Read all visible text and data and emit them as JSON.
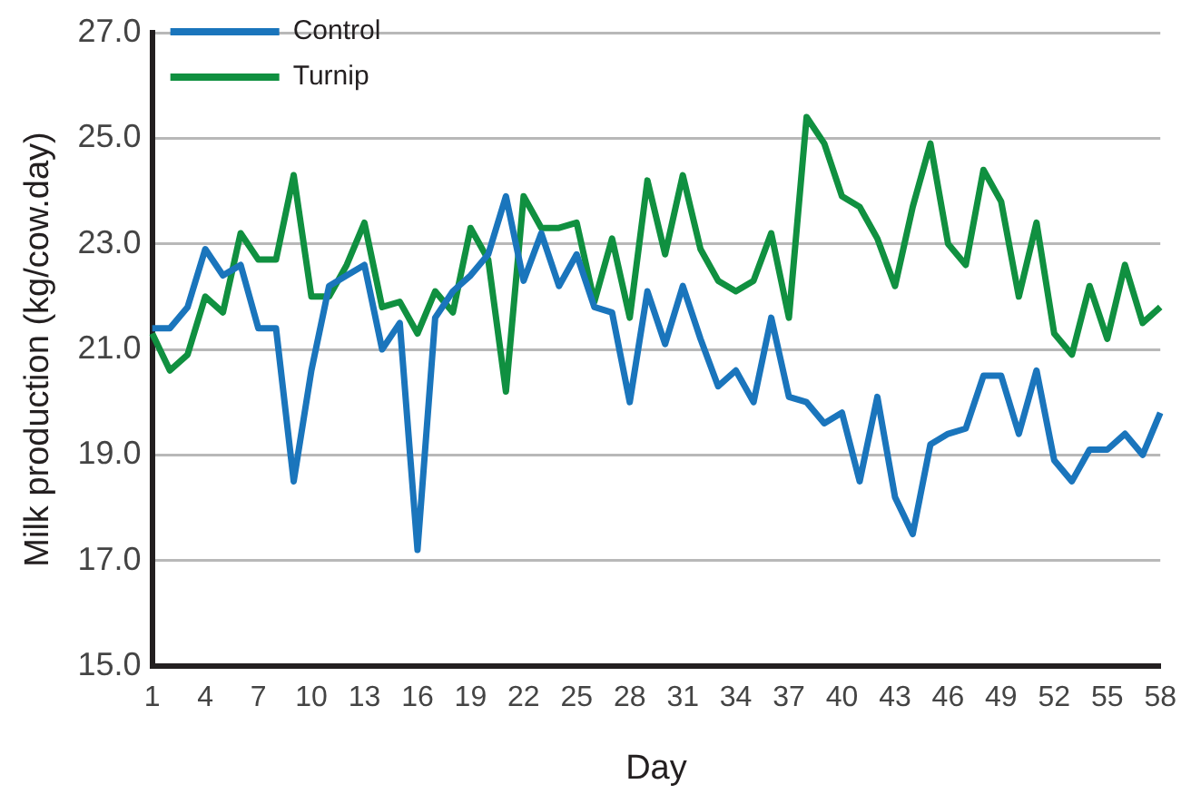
{
  "chart_data": {
    "type": "line",
    "xlabel": "Day",
    "ylabel": "Milk production (kg/cow.day)",
    "categories": [
      "1",
      null,
      null,
      "4",
      null,
      null,
      "7",
      null,
      null,
      "10",
      null,
      null,
      "13",
      null,
      null,
      "16",
      null,
      null,
      "19",
      null,
      null,
      "22",
      null,
      null,
      "25",
      null,
      null,
      "28",
      null,
      null,
      "31",
      null,
      null,
      "34",
      null,
      null,
      "37",
      null,
      null,
      "40",
      null,
      null,
      "43",
      null,
      null,
      "46",
      null,
      null,
      "49",
      null,
      null,
      "52",
      null,
      null,
      "55",
      null,
      null,
      "58"
    ],
    "series": [
      {
        "name": "Control",
        "color": "#1a75bc",
        "values": [
          21.4,
          21.4,
          21.8,
          22.9,
          22.4,
          22.6,
          21.4,
          21.4,
          18.5,
          20.6,
          22.2,
          22.4,
          22.6,
          21.0,
          21.5,
          17.2,
          21.6,
          22.1,
          22.4,
          22.8,
          23.9,
          22.3,
          23.2,
          22.2,
          22.8,
          21.8,
          21.7,
          20.0,
          22.1,
          21.1,
          22.2,
          21.2,
          20.3,
          20.6,
          20.0,
          21.6,
          20.1,
          20.0,
          19.6,
          19.8,
          18.5,
          20.1,
          18.2,
          17.5,
          19.2,
          19.4,
          19.5,
          20.5,
          20.5,
          19.4,
          20.6,
          18.9,
          18.5,
          19.1,
          19.1,
          19.4,
          19.0,
          19.8
        ]
      },
      {
        "name": "Turnip",
        "color": "#109040",
        "values": [
          21.3,
          20.6,
          20.9,
          22.0,
          21.7,
          23.2,
          22.7,
          22.7,
          24.3,
          22.0,
          22.0,
          22.6,
          23.4,
          21.8,
          21.9,
          21.3,
          22.1,
          21.7,
          23.3,
          22.7,
          20.2,
          23.9,
          23.3,
          23.3,
          23.4,
          21.9,
          23.1,
          21.6,
          24.2,
          22.8,
          24.3,
          22.9,
          22.3,
          22.1,
          22.3,
          23.2,
          21.6,
          25.4,
          24.9,
          23.9,
          23.7,
          23.1,
          22.2,
          23.7,
          24.9,
          23.0,
          22.6,
          24.4,
          23.8,
          22.0,
          23.4,
          21.3,
          20.9,
          22.2,
          21.2,
          22.6,
          21.5,
          21.8
        ]
      }
    ],
    "ylim": [
      15,
      27
    ],
    "yticks": [
      {
        "value": 15,
        "label": "15.0"
      },
      {
        "value": 17,
        "label": "17.0"
      },
      {
        "value": 19,
        "label": "19.0"
      },
      {
        "value": 21,
        "label": "21.0"
      },
      {
        "value": 23,
        "label": "23.0"
      },
      {
        "value": 25,
        "label": "25.0"
      },
      {
        "value": 27,
        "label": "27.0"
      }
    ],
    "grid": "y",
    "legend": "top left",
    "marker": "none",
    "line_style": "solid"
  }
}
